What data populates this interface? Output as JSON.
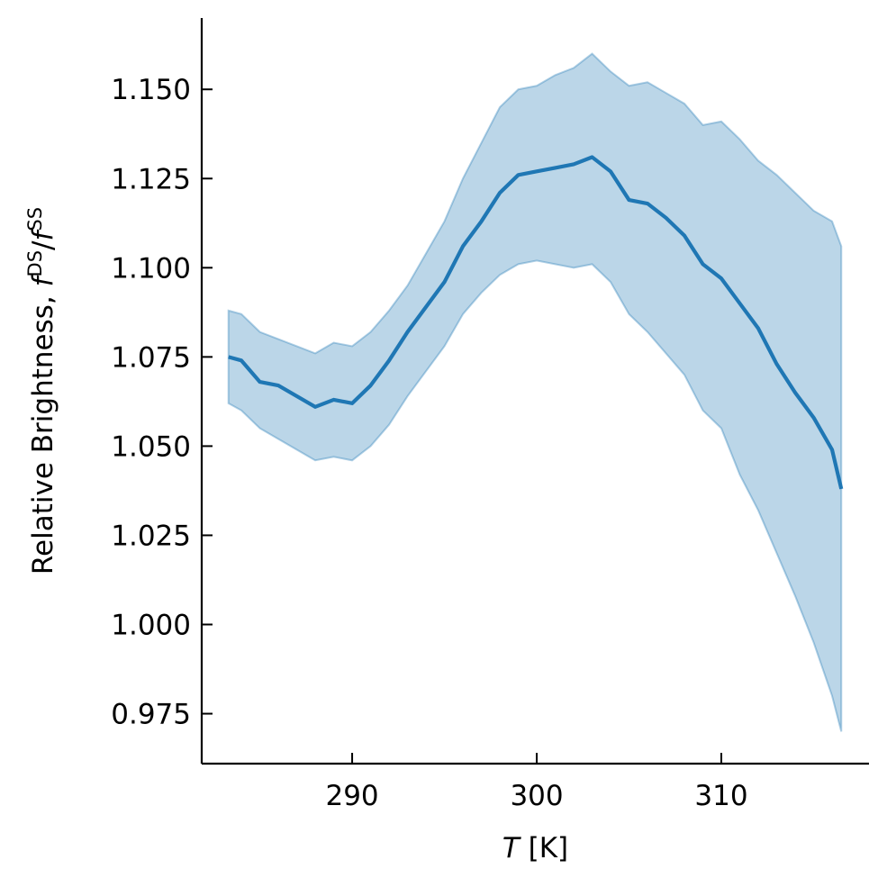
{
  "chart_data": {
    "type": "line_band",
    "color": "#1f77b4",
    "xlabel": [
      {
        "text": "T",
        "style": "italic"
      },
      {
        "text": " [K]"
      }
    ],
    "ylabel": [
      {
        "text": "Relative Brightness, "
      },
      {
        "text": "f",
        "style": "italic"
      },
      {
        "text": "DS",
        "style": "sup"
      },
      {
        "text": "/"
      },
      {
        "text": "f",
        "style": "italic"
      },
      {
        "text": "SS",
        "style": "sup"
      }
    ],
    "x": [
      283.3,
      284,
      285,
      286,
      287,
      288,
      289,
      290,
      291,
      292,
      293,
      294,
      295,
      296,
      297,
      298,
      299,
      300,
      301,
      302,
      303,
      304,
      305,
      306,
      307,
      308,
      309,
      310,
      311,
      312,
      313,
      314,
      315,
      316,
      316.5
    ],
    "values": [
      1.075,
      1.074,
      1.068,
      1.067,
      1.064,
      1.061,
      1.063,
      1.062,
      1.067,
      1.074,
      1.082,
      1.089,
      1.096,
      1.106,
      1.113,
      1.121,
      1.126,
      1.127,
      1.128,
      1.129,
      1.131,
      1.127,
      1.119,
      1.118,
      1.114,
      1.109,
      1.101,
      1.097,
      1.09,
      1.083,
      1.073,
      1.065,
      1.058,
      1.049,
      1.038
    ],
    "upper": [
      1.088,
      1.087,
      1.082,
      1.08,
      1.078,
      1.076,
      1.079,
      1.078,
      1.082,
      1.088,
      1.095,
      1.104,
      1.113,
      1.125,
      1.135,
      1.145,
      1.15,
      1.151,
      1.154,
      1.156,
      1.16,
      1.155,
      1.151,
      1.152,
      1.149,
      1.146,
      1.14,
      1.141,
      1.136,
      1.13,
      1.126,
      1.121,
      1.116,
      1.113,
      1.106
    ],
    "lower": [
      1.062,
      1.06,
      1.055,
      1.052,
      1.049,
      1.046,
      1.047,
      1.046,
      1.05,
      1.056,
      1.064,
      1.071,
      1.078,
      1.087,
      1.093,
      1.098,
      1.101,
      1.102,
      1.101,
      1.1,
      1.101,
      1.096,
      1.087,
      1.082,
      1.076,
      1.07,
      1.06,
      1.055,
      1.042,
      1.032,
      1.02,
      1.008,
      0.995,
      0.98,
      0.97
    ],
    "xlim": [
      281.85,
      318.0
    ],
    "ylim": [
      0.961,
      1.17
    ],
    "xticks": [
      290,
      300,
      310
    ],
    "yticks": [
      {
        "value": 0.975,
        "label": "0.975"
      },
      {
        "value": 1.0,
        "label": "1.000"
      },
      {
        "value": 1.025,
        "label": "1.025"
      },
      {
        "value": 1.05,
        "label": "1.050"
      },
      {
        "value": 1.075,
        "label": "1.075"
      },
      {
        "value": 1.1,
        "label": "1.100"
      },
      {
        "value": 1.125,
        "label": "1.125"
      },
      {
        "value": 1.15,
        "label": "1.150"
      }
    ],
    "tick_direction": "in",
    "grid": false
  }
}
